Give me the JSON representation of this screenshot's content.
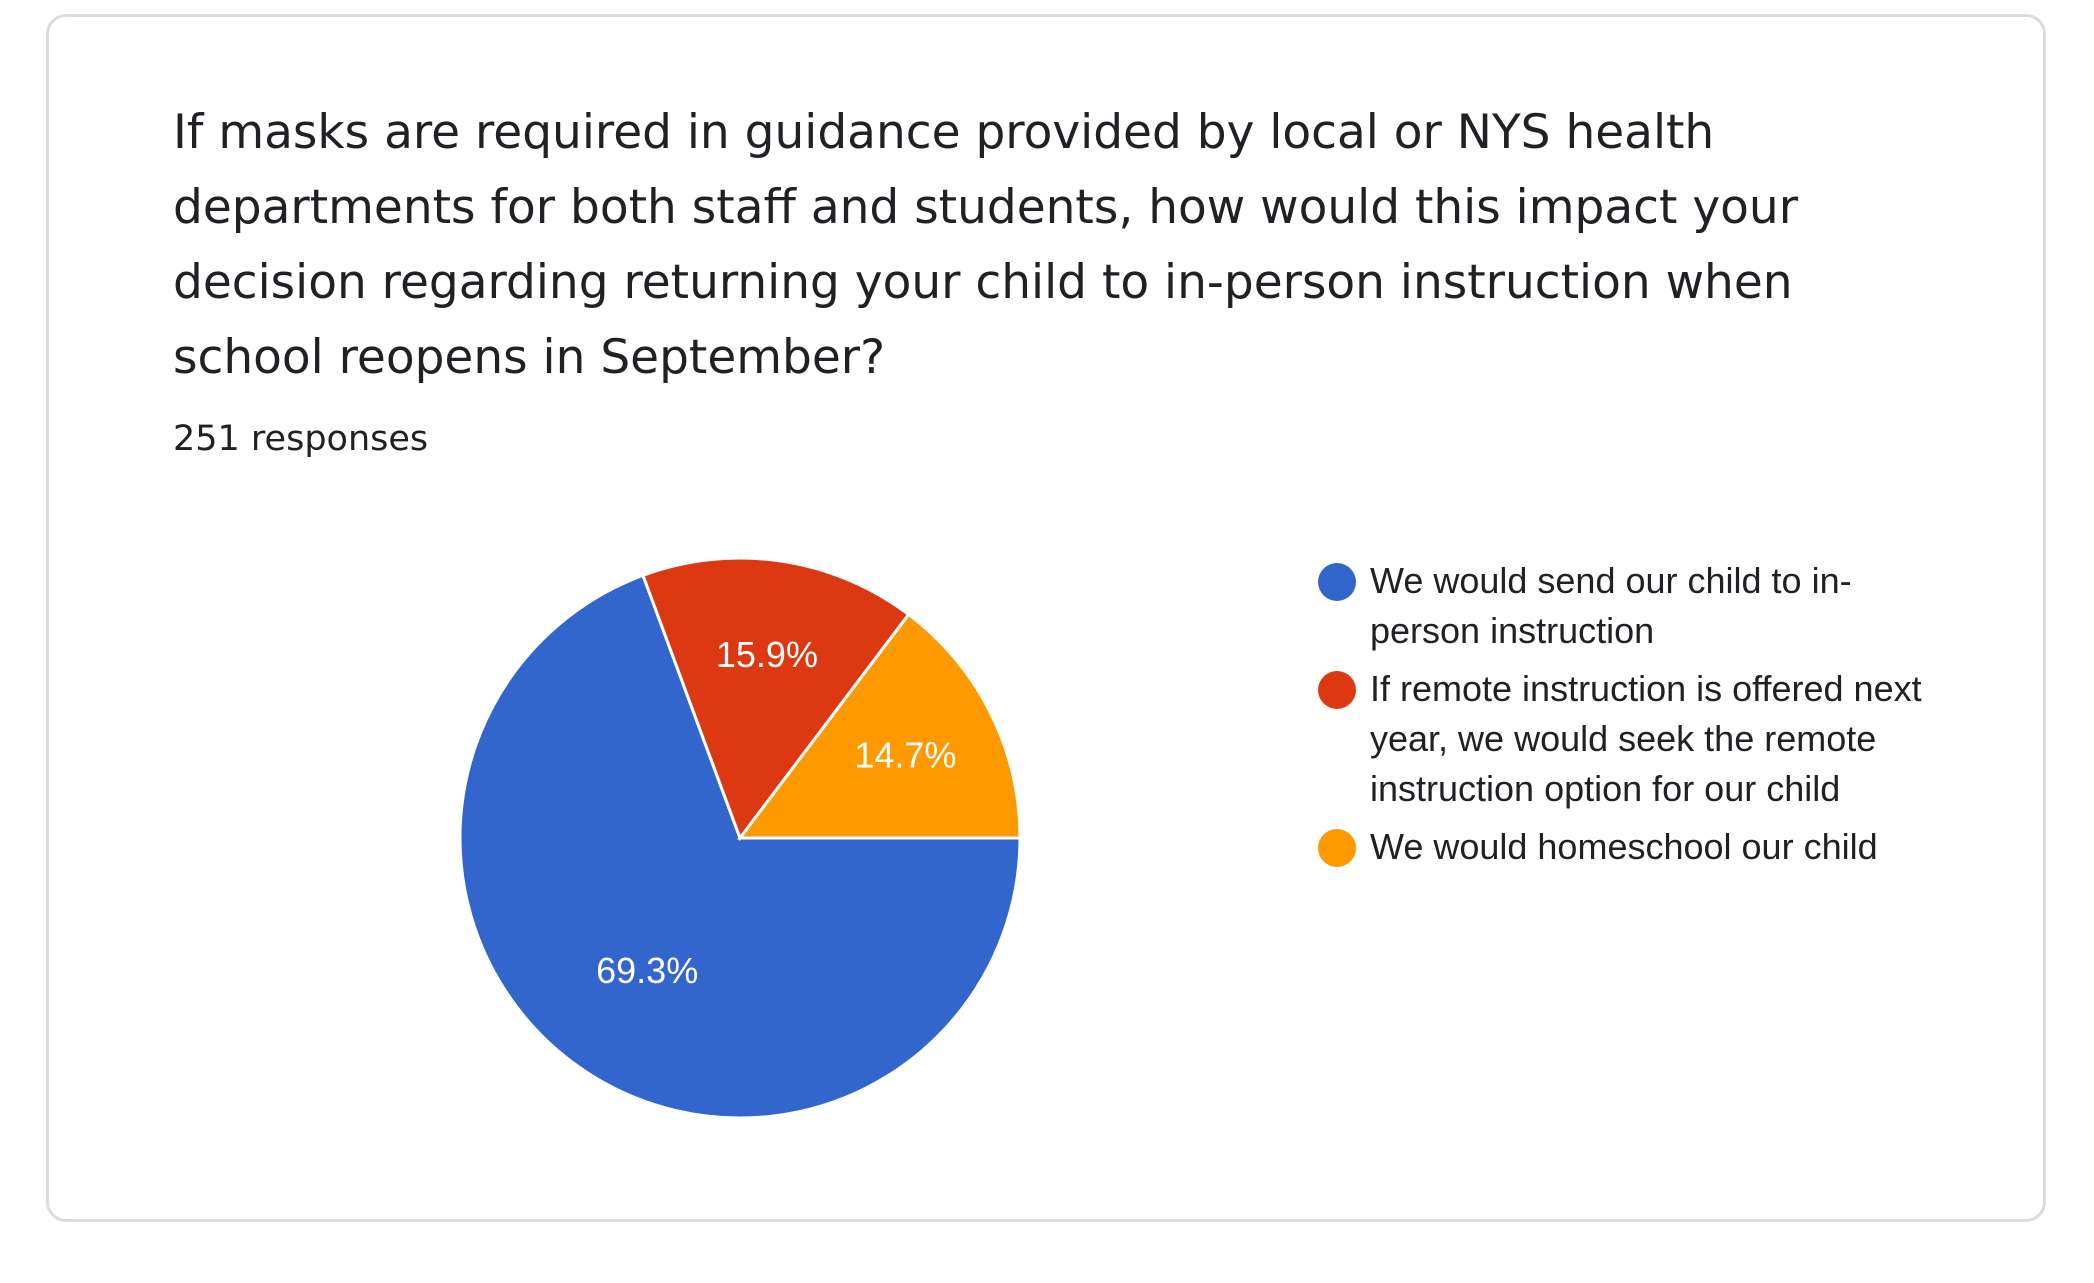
{
  "question": "If masks are required in guidance provided by local or NYS health departments for both staff and students, how would this impact your decision regarding returning your child to in-person instruction when school reopens in September?",
  "responses": "251 responses",
  "chart_data": {
    "type": "pie",
    "categories": [
      "We would send our child to in-person instruction",
      "If remote instruction is offered next year, we would seek the remote instruction option for our child",
      "We would homeschool our child"
    ],
    "values": [
      69.3,
      15.9,
      14.7
    ],
    "labels": [
      "69.3%",
      "15.9%",
      "14.7%"
    ],
    "colors": [
      "#3366cc",
      "#dc3912",
      "#ff9900"
    ],
    "legend_position": "right"
  }
}
